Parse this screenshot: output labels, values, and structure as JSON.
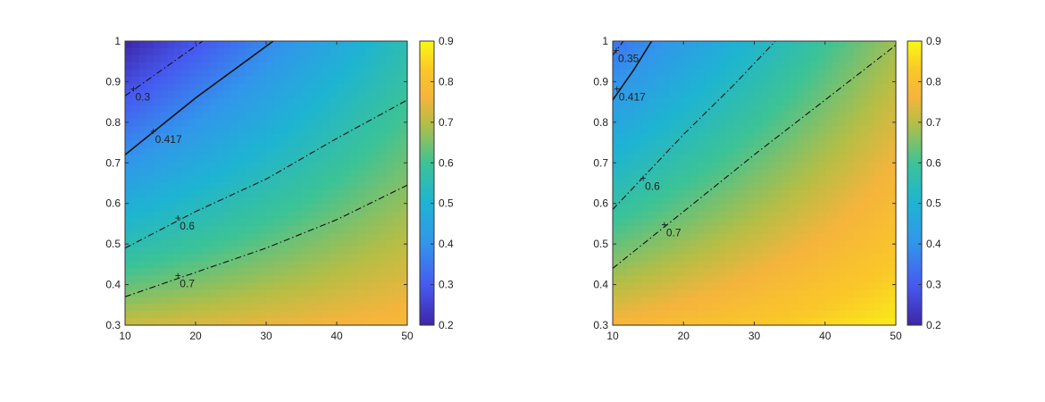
{
  "chart_data": [
    {
      "type": "heatmap",
      "title": "",
      "xlabel": "",
      "ylabel": "",
      "xlim": [
        10,
        50
      ],
      "ylim": [
        0.3,
        1
      ],
      "x_ticks": [
        "10",
        "20",
        "30",
        "40",
        "50"
      ],
      "y_ticks": [
        "0.3",
        "0.4",
        "0.5",
        "0.6",
        "0.7",
        "0.8",
        "0.9",
        "1"
      ],
      "colorbar": {
        "range": [
          0.2,
          0.9
        ],
        "ticks": [
          "0.2",
          "0.3",
          "0.4",
          "0.5",
          "0.6",
          "0.7",
          "0.8",
          "0.9"
        ],
        "colormap": "parula"
      },
      "surface": {
        "corner_values": {
          "x10_y1": 0.2,
          "x50_y1": 0.55,
          "x10_y03": 0.72,
          "x50_y03": 0.78
        }
      },
      "contours": [
        {
          "level": 0.3,
          "label": "0.3",
          "style": "dashdot",
          "points": [
            [
              10,
              0.865
            ],
            [
              21,
              1.0
            ]
          ],
          "label_at": [
            11.2,
            0.88
          ]
        },
        {
          "level": 0.417,
          "label": "0.417",
          "style": "solid",
          "points": [
            [
              10,
              0.72
            ],
            [
              20,
              0.86
            ],
            [
              31,
              1.0
            ]
          ],
          "label_at": [
            14.0,
            0.775
          ]
        },
        {
          "level": 0.6,
          "label": "0.6",
          "style": "dashdot",
          "points": [
            [
              10,
              0.49
            ],
            [
              20,
              0.58
            ],
            [
              30,
              0.66
            ],
            [
              40,
              0.76
            ],
            [
              50,
              0.855
            ]
          ],
          "label_at": [
            17.5,
            0.562
          ]
        },
        {
          "level": 0.7,
          "label": "0.7",
          "style": "dashdot",
          "points": [
            [
              10,
              0.37
            ],
            [
              20,
              0.43
            ],
            [
              30,
              0.49
            ],
            [
              40,
              0.56
            ],
            [
              50,
              0.645
            ]
          ],
          "label_at": [
            17.5,
            0.42
          ]
        }
      ]
    },
    {
      "type": "heatmap",
      "title": "",
      "xlabel": "",
      "ylabel": "",
      "xlim": [
        10,
        50
      ],
      "ylim": [
        0.3,
        1
      ],
      "x_ticks": [
        "10",
        "20",
        "30",
        "40",
        "50"
      ],
      "y_ticks": [
        "0.3",
        "0.4",
        "0.5",
        "0.6",
        "0.7",
        "0.8",
        "0.9",
        "1"
      ],
      "colorbar": {
        "range": [
          0.2,
          0.9
        ],
        "ticks": [
          "0.2",
          "0.3",
          "0.4",
          "0.5",
          "0.6",
          "0.7",
          "0.8",
          "0.9"
        ],
        "colormap": "parula"
      },
      "surface": {
        "corner_values": {
          "x10_y1": 0.34,
          "x50_y1": 0.68,
          "x10_y03": 0.77,
          "x50_y03": 0.88
        }
      },
      "contours": [
        {
          "level": 0.35,
          "label": "0.35",
          "style": "dashdot",
          "points": [
            [
              10,
              0.965
            ],
            [
              11.5,
              1.0
            ]
          ],
          "label_at": [
            10.5,
            0.975
          ]
        },
        {
          "level": 0.417,
          "label": "0.417",
          "style": "solid",
          "points": [
            [
              10,
              0.855
            ],
            [
              13,
              0.93
            ],
            [
              15.5,
              1.0
            ]
          ],
          "label_at": [
            10.6,
            0.88
          ]
        },
        {
          "level": 0.6,
          "label": "0.6",
          "style": "dashdot",
          "points": [
            [
              10,
              0.585
            ],
            [
              20,
              0.77
            ],
            [
              27,
              0.89
            ],
            [
              33,
              1.0
            ]
          ],
          "label_at": [
            14.3,
            0.66
          ]
        },
        {
          "level": 0.7,
          "label": "0.7",
          "style": "dashdot",
          "points": [
            [
              10,
              0.44
            ],
            [
              20,
              0.58
            ],
            [
              30,
              0.72
            ],
            [
              40,
              0.855
            ],
            [
              50,
              0.99
            ]
          ],
          "label_at": [
            17.3,
            0.545
          ]
        }
      ]
    }
  ]
}
